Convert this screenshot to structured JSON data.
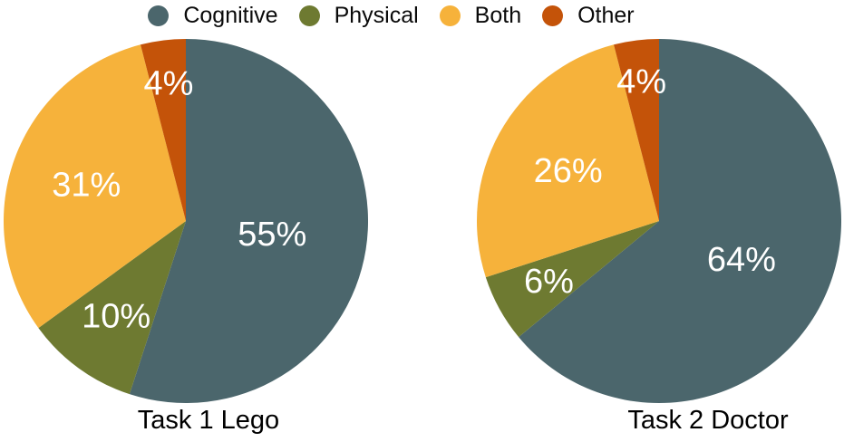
{
  "figure": {
    "background": "#ffffff",
    "percent_label_color": "#ffffff",
    "title_color": "#000000",
    "legend_text_color": "#0a0a0a"
  },
  "legend": {
    "position": "top-center",
    "items": [
      {
        "label": "Cognitive",
        "color": "#4B666C"
      },
      {
        "label": "Physical",
        "color": "#6E7A31"
      },
      {
        "label": "Both",
        "color": "#F6B23B"
      },
      {
        "label": "Other",
        "color": "#C45309"
      }
    ]
  },
  "chart_data": [
    {
      "type": "pie",
      "title": "Task 1 Lego",
      "categories": [
        "Cognitive",
        "Physical",
        "Both",
        "Other"
      ],
      "values": [
        55,
        10,
        31,
        4
      ],
      "value_labels": [
        "55%",
        "10%",
        "31%",
        "4%"
      ],
      "colors": [
        "#4B666C",
        "#6E7A31",
        "#F6B23B",
        "#C45309"
      ],
      "unit": "percent",
      "start_angle": "12-oclock",
      "direction": "clockwise",
      "label_distance": [
        0.48,
        0.65,
        0.58,
        0.76
      ],
      "legend_position": "top"
    },
    {
      "type": "pie",
      "title": "Task 2 Doctor",
      "categories": [
        "Cognitive",
        "Physical",
        "Both",
        "Other"
      ],
      "values": [
        64,
        6,
        26,
        4
      ],
      "value_labels": [
        "64%",
        "6%",
        "26%",
        "4%"
      ],
      "colors": [
        "#4B666C",
        "#6E7A31",
        "#F6B23B",
        "#C45309"
      ],
      "unit": "percent",
      "start_angle": "12-oclock",
      "direction": "clockwise",
      "label_distance": [
        0.5,
        0.69,
        0.57,
        0.77
      ],
      "legend_position": "top"
    }
  ]
}
